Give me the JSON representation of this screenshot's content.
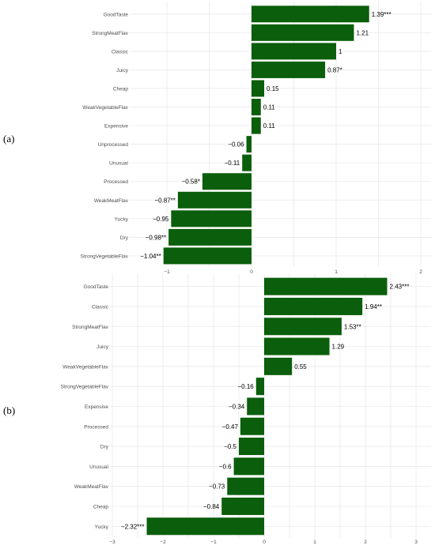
{
  "panels": [
    {
      "label": "(a)"
    },
    {
      "label": "(b)"
    }
  ],
  "colors": {
    "bar": "#0b5e0b",
    "grid": "#e6e6e6",
    "text": "#333333"
  },
  "chart_data": [
    {
      "type": "bar",
      "orientation": "horizontal",
      "categories": [
        "GoodTaste",
        "StrongMeatFlav",
        "Classic",
        "Juicy",
        "Cheap",
        "WeakVegetableFlav",
        "Expensive",
        "Unprocessed",
        "Unusual",
        "Processed",
        "WeakMeatFlav",
        "Yucky",
        "Dry",
        "StrongVegetableFlav"
      ],
      "values": [
        1.39,
        1.21,
        1,
        0.87,
        0.15,
        0.11,
        0.11,
        -0.06,
        -0.11,
        -0.58,
        -0.87,
        -0.95,
        -0.98,
        -1.04
      ],
      "data_labels": [
        "1.39***",
        "1.21",
        "1",
        "0.87*",
        "0.15",
        "0.11",
        "0.11",
        "−0.06",
        "−0.11",
        "−0.58*",
        "−0.87**",
        "−0.95",
        "−0.98**",
        "−1.04**"
      ],
      "xticks": [
        -1,
        0,
        1,
        2
      ],
      "xtick_labels": [
        "−1",
        "0",
        "1",
        "2"
      ],
      "xlim": [
        -1.25,
        2.1
      ],
      "grid": true
    },
    {
      "type": "bar",
      "orientation": "horizontal",
      "categories": [
        "GoodTaste",
        "Classic",
        "StrongMeatFlav",
        "Juicy",
        "WeakVegetableFlav",
        "StrongVegetableFlav",
        "Expensive",
        "Processed",
        "Dry",
        "Unusual",
        "WeakMeatFlav",
        "Cheap",
        "Yucky"
      ],
      "values": [
        2.43,
        1.94,
        1.53,
        1.29,
        0.55,
        -0.16,
        -0.34,
        -0.47,
        -0.5,
        -0.6,
        -0.73,
        -0.84,
        -2.32
      ],
      "data_labels": [
        "2.43***",
        "1.94**",
        "1.53**",
        "1.29",
        "0.55",
        "−0.16",
        "−0.34",
        "−0.47",
        "−0.5",
        "−0.6",
        "−0.73",
        "−0.84",
        "−2.32***"
      ],
      "xticks": [
        -3,
        -2,
        -1,
        0,
        1,
        2,
        3
      ],
      "xtick_labels": [
        "−3",
        "−2",
        "−1",
        "0",
        "1",
        "2",
        "3"
      ],
      "xlim": [
        -3.15,
        3.15
      ],
      "grid": true
    }
  ]
}
